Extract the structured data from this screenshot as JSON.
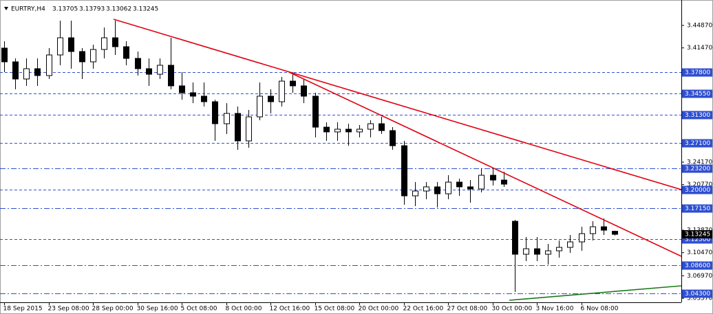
{
  "chart_data": {
    "type": "candlestick",
    "symbol": "EURTRY,H4",
    "categories": [
      "18 Sep 2015",
      null,
      null,
      null,
      "23 Sep 08:00",
      null,
      null,
      null,
      "28 Sep 00:00",
      null,
      null,
      null,
      "30 Sep 16:00",
      null,
      null,
      null,
      "5 Oct 08:00",
      null,
      null,
      null,
      "8 Oct 00:00",
      null,
      null,
      null,
      "12 Oct 16:00",
      null,
      null,
      null,
      "15 Oct 08:00",
      null,
      null,
      null,
      "20 Oct 00:00",
      null,
      null,
      null,
      "22 Oct 16:00",
      null,
      null,
      null,
      "27 Oct 08:00",
      null,
      null,
      null,
      "30 Oct 00:00",
      null,
      null,
      null,
      "3 Nov 16:00",
      null,
      null,
      null,
      "6 Nov 08:00",
      null,
      null,
      null
    ],
    "open": [
      3.4144,
      3.3936,
      3.3676,
      3.3832,
      3.3728,
      3.404,
      3.43,
      3.4092,
      3.3936,
      3.4123,
      3.43,
      3.4165,
      3.3988,
      3.3832,
      3.3748,
      3.3884,
      3.3572,
      3.3468,
      3.3416,
      3.3332,
      3.2999,
      3.3155,
      3.2739,
      3.3103,
      3.3416,
      3.3332,
      3.3644,
      3.3572,
      3.3416,
      3.2947,
      3.2875,
      3.2916,
      3.2875,
      3.2916,
      3.2999,
      3.2895,
      3.2666,
      3.1907,
      3.198,
      3.2043,
      3.1938,
      3.2115,
      3.2043,
      3.2011,
      3.2219,
      3.2146,
      3.1522,
      3.1023,
      3.1106,
      3.1023,
      3.1075,
      3.1127,
      3.121,
      3.1335,
      3.1439,
      3.13705
    ],
    "high": [
      3.4248,
      3.3988,
      3.3988,
      3.3988,
      3.4144,
      3.456,
      3.456,
      3.4144,
      3.4196,
      3.4456,
      3.456,
      3.4248,
      3.4092,
      3.3988,
      3.3988,
      3.43,
      3.378,
      3.3624,
      3.3624,
      3.3363,
      3.3311,
      3.3259,
      3.3207,
      3.3624,
      3.352,
      3.3707,
      3.378,
      3.3676,
      3.3468,
      3.302,
      3.302,
      3.2999,
      3.2979,
      3.3051,
      3.3103,
      3.2947,
      3.2739,
      3.2115,
      3.2115,
      3.2115,
      3.2219,
      3.2167,
      3.2146,
      3.2323,
      3.2323,
      3.2271,
      3.1543,
      3.1283,
      3.1283,
      3.1179,
      3.1231,
      3.1314,
      3.1439,
      3.1522,
      3.1564,
      3.13793
    ],
    "low": [
      3.378,
      3.352,
      3.3572,
      3.3572,
      3.3676,
      3.3884,
      3.3832,
      3.3676,
      3.3832,
      3.3988,
      3.404,
      3.3884,
      3.3728,
      3.3572,
      3.3676,
      3.352,
      3.3363,
      3.3311,
      3.3259,
      3.2739,
      3.2843,
      3.2604,
      3.2635,
      3.3051,
      3.3155,
      3.3259,
      3.3468,
      3.3311,
      3.2792,
      3.2739,
      3.2739,
      3.2666,
      3.2792,
      3.2792,
      3.2843,
      3.2604,
      3.1772,
      3.1751,
      3.1855,
      3.173,
      3.1855,
      3.1907,
      3.1803,
      3.1959,
      3.2063,
      3.2043,
      3.0451,
      3.0919,
      3.0919,
      3.0867,
      3.0971,
      3.1044,
      3.1075,
      3.1231,
      3.1314,
      3.13062
    ],
    "close": [
      3.3936,
      3.3676,
      3.3832,
      3.3728,
      3.404,
      3.43,
      3.4092,
      3.3936,
      3.4123,
      3.43,
      3.4165,
      3.3988,
      3.3832,
      3.3748,
      3.3884,
      3.3572,
      3.3468,
      3.3416,
      3.3332,
      3.2999,
      3.3155,
      3.2739,
      3.3103,
      3.3416,
      3.3332,
      3.3644,
      3.3572,
      3.3416,
      3.2947,
      3.2875,
      3.2916,
      3.2875,
      3.2916,
      3.2999,
      3.2895,
      3.2666,
      3.1907,
      3.198,
      3.2043,
      3.1938,
      3.2115,
      3.2043,
      3.2011,
      3.2219,
      3.2146,
      3.2084,
      3.1023,
      3.1106,
      3.1023,
      3.1075,
      3.1127,
      3.121,
      3.1335,
      3.1439,
      3.1387,
      3.13245
    ],
    "up_color": "#ffffff",
    "down_color": "#000000",
    "wick_color": "#000000",
    "ylim": [
      3.0295,
      3.4872
    ],
    "yticks": [
      {
        "value": 3.4487,
        "label": "3.44870"
      },
      {
        "value": 3.4147,
        "label": "3.41470"
      },
      {
        "value": 3.2417,
        "label": "3.24170"
      },
      {
        "value": 3.2077,
        "label": "3.20770"
      },
      {
        "value": 3.1387,
        "label": "3.13870"
      },
      {
        "value": 3.1047,
        "label": "3.10470"
      },
      {
        "value": 3.0697,
        "label": "3.06970"
      },
      {
        "value": 3.0357,
        "label": "3.03570"
      }
    ],
    "level_color": "#2f4fd0",
    "levels": [
      {
        "value": 3.378,
        "label": "3.37800",
        "style": "dash"
      },
      {
        "value": 3.3455,
        "label": "3.34550",
        "style": "dash"
      },
      {
        "value": 3.313,
        "label": "3.31300",
        "style": "dash"
      },
      {
        "value": 3.271,
        "label": "3.27100",
        "style": "dash"
      },
      {
        "value": 3.232,
        "label": "3.23200",
        "style": "dashdot"
      },
      {
        "value": 3.2,
        "label": "3.20000",
        "style": "dash"
      },
      {
        "value": 3.1715,
        "label": "3.17150",
        "style": "dashdot"
      },
      {
        "value": 3.125,
        "label": "3.12500",
        "style": "dash"
      },
      {
        "value": 3.086,
        "label": "3.08600",
        "style": "dashdot"
      },
      {
        "value": 3.043,
        "label": "3.04300",
        "style": "dashdot"
      }
    ]
  }
}
